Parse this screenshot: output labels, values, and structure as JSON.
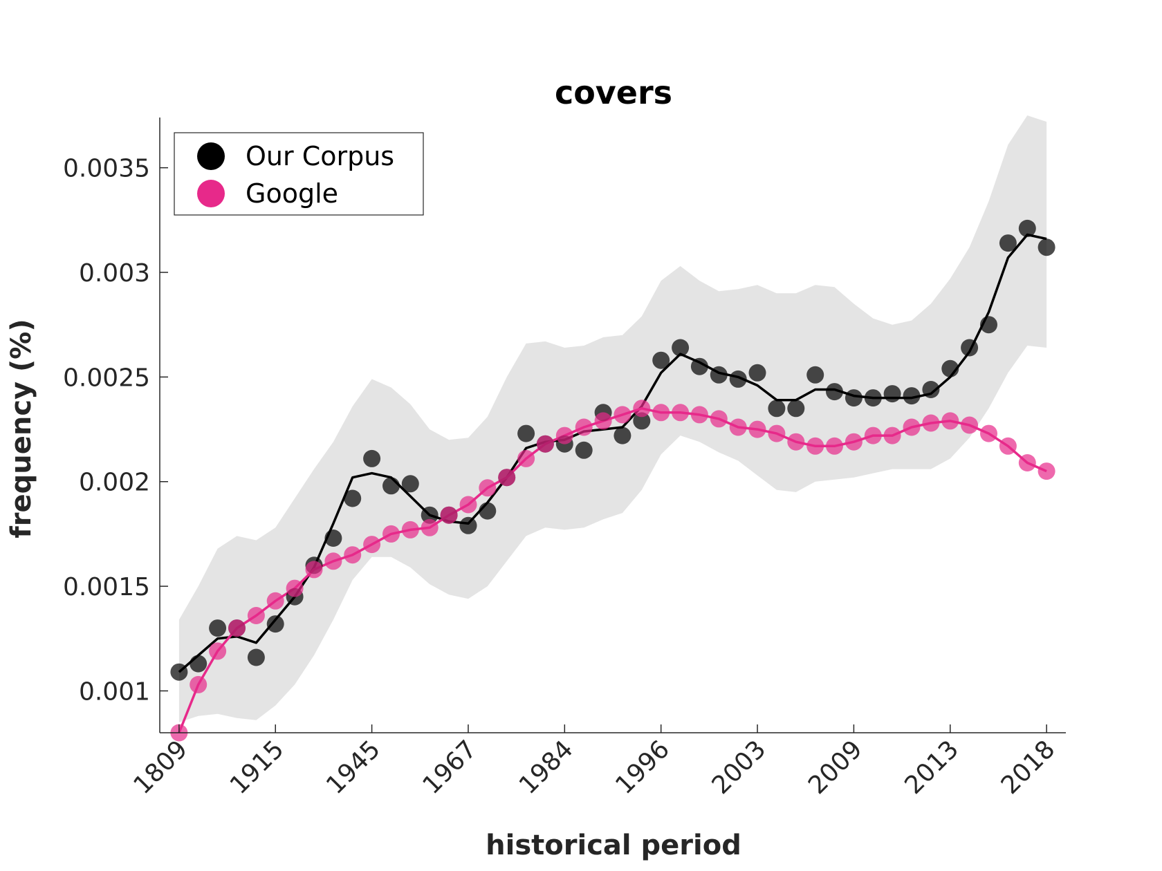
{
  "chart_data": {
    "type": "scatter",
    "title": "covers",
    "xlabel": "historical period",
    "ylabel": "frequency (%)",
    "x_tick_labels": [
      "1809",
      "1915",
      "1945",
      "1967",
      "1984",
      "1996",
      "2003",
      "2009",
      "2013",
      "2018"
    ],
    "x_tick_positions": [
      1,
      6,
      11,
      16,
      21,
      26,
      31,
      36,
      41,
      46
    ],
    "xlim": [
      0,
      47
    ],
    "y_tick_labels": [
      "0.001",
      "0.0015",
      "0.002",
      "0.0025",
      "0.003",
      "0.0035"
    ],
    "y_ticks": [
      0.001,
      0.0015,
      0.002,
      0.0025,
      0.003,
      0.0035
    ],
    "ylim": [
      0.0008,
      0.00374
    ],
    "grid": false,
    "legend_position": "top-left",
    "x": [
      1,
      2,
      3,
      4,
      5,
      6,
      7,
      8,
      9,
      10,
      11,
      12,
      13,
      14,
      15,
      16,
      17,
      18,
      19,
      20,
      21,
      22,
      23,
      24,
      25,
      26,
      27,
      28,
      29,
      30,
      31,
      32,
      33,
      34,
      35,
      36,
      37,
      38,
      39,
      40,
      41,
      42,
      43,
      44,
      45,
      46
    ],
    "series": [
      {
        "name": "Our Corpus",
        "color": "#000000",
        "points": [
          0.00109,
          0.00113,
          0.0013,
          0.0013,
          0.00116,
          0.00132,
          0.00145,
          0.0016,
          0.00173,
          0.00192,
          0.00211,
          0.00198,
          0.00199,
          0.00184,
          0.00184,
          0.00179,
          0.00186,
          0.00202,
          0.00223,
          0.00218,
          0.00218,
          0.00215,
          0.00233,
          0.00222,
          0.00229,
          0.00258,
          0.00264,
          0.00255,
          0.00251,
          0.00249,
          0.00252,
          0.00235,
          0.00235,
          0.00251,
          0.00243,
          0.0024,
          0.0024,
          0.00242,
          0.00241,
          0.00244,
          0.00254,
          0.00264,
          0.00275,
          0.00314,
          0.00321,
          0.00312
        ],
        "trend": [
          0.00109,
          0.00117,
          0.00125,
          0.00126,
          0.00123,
          0.00134,
          0.00145,
          0.00159,
          0.0018,
          0.00202,
          0.00204,
          0.00202,
          0.00193,
          0.00184,
          0.00181,
          0.0018,
          0.0019,
          0.00202,
          0.00216,
          0.00219,
          0.0022,
          0.00224,
          0.00225,
          0.00226,
          0.00236,
          0.00252,
          0.00261,
          0.00257,
          0.00252,
          0.0025,
          0.00246,
          0.00239,
          0.00239,
          0.00244,
          0.00244,
          0.00241,
          0.0024,
          0.0024,
          0.0024,
          0.00242,
          0.0025,
          0.00262,
          0.00281,
          0.00307,
          0.00318,
          0.00316
        ],
        "band_upper": [
          0.00134,
          0.0015,
          0.00168,
          0.00174,
          0.00172,
          0.00178,
          0.00192,
          0.00206,
          0.00219,
          0.00236,
          0.00249,
          0.00245,
          0.00237,
          0.00225,
          0.0022,
          0.00221,
          0.00231,
          0.0025,
          0.00266,
          0.00267,
          0.00264,
          0.00265,
          0.00269,
          0.0027,
          0.00279,
          0.00296,
          0.00303,
          0.00296,
          0.00291,
          0.00292,
          0.00294,
          0.0029,
          0.0029,
          0.00294,
          0.00293,
          0.00285,
          0.00278,
          0.00275,
          0.00277,
          0.00285,
          0.00297,
          0.00312,
          0.00334,
          0.00361,
          0.00375,
          0.00372
        ],
        "band_lower": [
          0.00085,
          0.00088,
          0.00089,
          0.00087,
          0.00086,
          0.00093,
          0.00103,
          0.00117,
          0.00134,
          0.00153,
          0.00164,
          0.00164,
          0.00159,
          0.00151,
          0.00146,
          0.00144,
          0.0015,
          0.00162,
          0.00174,
          0.00178,
          0.00177,
          0.00178,
          0.00182,
          0.00185,
          0.00196,
          0.00213,
          0.00222,
          0.00219,
          0.00214,
          0.0021,
          0.00203,
          0.00196,
          0.00195,
          0.002,
          0.00201,
          0.00202,
          0.00204,
          0.00206,
          0.00206,
          0.00206,
          0.00211,
          0.00221,
          0.00235,
          0.00252,
          0.00265,
          0.00264
        ]
      },
      {
        "name": "Google",
        "color": "#e7298a",
        "points": [
          0.0008,
          0.00103,
          0.00119,
          0.0013,
          0.00136,
          0.00143,
          0.00149,
          0.00158,
          0.00162,
          0.00165,
          0.0017,
          0.00175,
          0.00177,
          0.00178,
          0.00184,
          0.00189,
          0.00197,
          0.00202,
          0.00211,
          0.00218,
          0.00222,
          0.00226,
          0.00229,
          0.00232,
          0.00235,
          0.00233,
          0.00233,
          0.00232,
          0.0023,
          0.00226,
          0.00225,
          0.00223,
          0.00219,
          0.00217,
          0.00217,
          0.00219,
          0.00222,
          0.00222,
          0.00226,
          0.00228,
          0.00229,
          0.00227,
          0.00223,
          0.00217,
          0.00209,
          0.00205
        ],
        "trend": [
          0.0008,
          0.00103,
          0.00119,
          0.0013,
          0.00136,
          0.00143,
          0.00149,
          0.00158,
          0.00162,
          0.00165,
          0.0017,
          0.00175,
          0.00177,
          0.00178,
          0.00184,
          0.00189,
          0.00197,
          0.00202,
          0.00211,
          0.00218,
          0.00222,
          0.00226,
          0.00229,
          0.00232,
          0.00235,
          0.00233,
          0.00233,
          0.00232,
          0.0023,
          0.00226,
          0.00225,
          0.00223,
          0.00219,
          0.00217,
          0.00217,
          0.00219,
          0.00222,
          0.00222,
          0.00226,
          0.00228,
          0.00229,
          0.00227,
          0.00223,
          0.00217,
          0.00209,
          0.00205
        ]
      }
    ]
  }
}
